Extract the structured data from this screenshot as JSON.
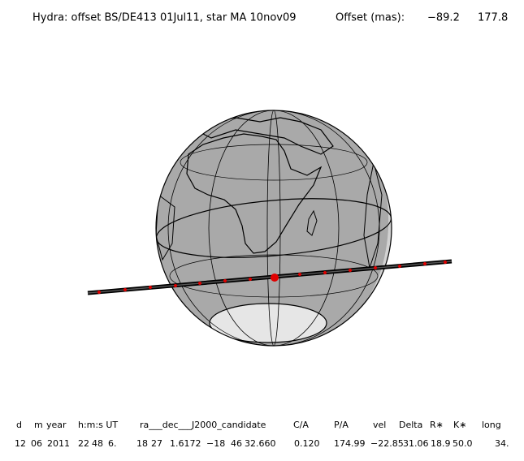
{
  "title": "Hydra: offset BS/DE413 01Jul11, star MA 10nov09",
  "offset_label": "Offset (mas):",
  "offsets": [
    "−89.2",
    "177.8"
  ],
  "table": {
    "headers": [
      "d",
      "m",
      "year",
      "h:m:s UT",
      "ra___dec___J2000_candidate",
      "C/A",
      "P/A",
      "vel",
      "Delta",
      "R∗",
      "K∗",
      "long"
    ],
    "values": [
      "12",
      "06",
      "2011",
      "22",
      "48",
      "6.",
      "18",
      "27",
      "1.6172",
      "−18",
      "46",
      "32.660",
      "0.120",
      "174.99",
      "−22.85",
      "31.06",
      "18.9",
      "50.0",
      "34."
    ]
  }
}
